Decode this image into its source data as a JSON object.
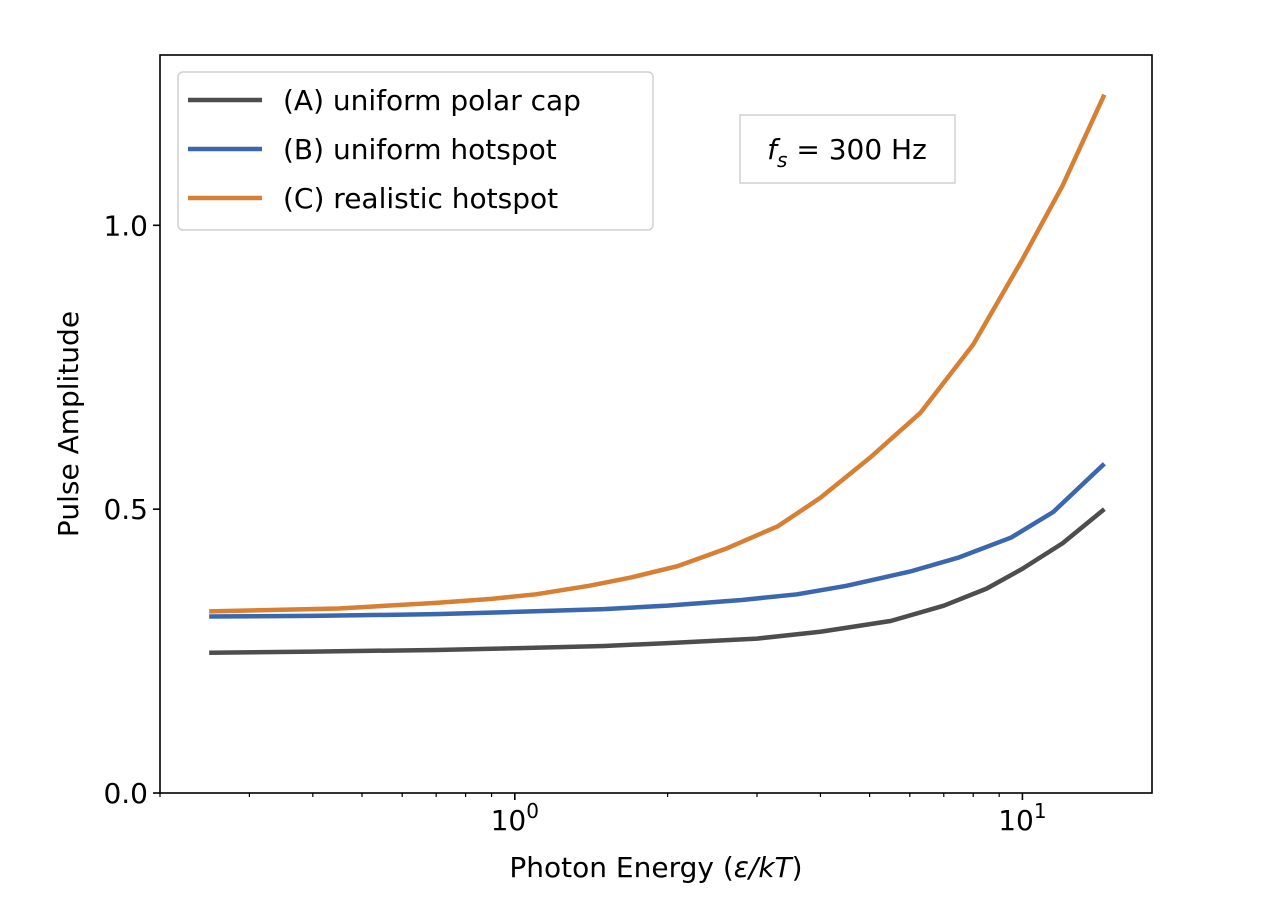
{
  "chart_data": {
    "type": "line",
    "xlabel_prefix": "Photon Energy (",
    "xlabel_var": "ε/kT",
    "xlabel_suffix": ")",
    "ylabel": "Pulse Amplitude",
    "xscale": "log",
    "xlim": [
      0.2,
      18
    ],
    "ylim": [
      0,
      1.3
    ],
    "yticks": [
      0.0,
      0.5,
      1.0
    ],
    "ytick_labels": [
      "0.0",
      "0.5",
      "1.0"
    ],
    "xticks": [
      1,
      10
    ],
    "xtick_base": "10",
    "xtick_exponents": [
      "0",
      "1"
    ],
    "grid": false,
    "legend_position": "top-left",
    "annotation": {
      "var": "f",
      "sub": "s",
      "rest": " = 300 Hz",
      "position": "top-center-right"
    },
    "series": [
      {
        "name": "(A) uniform polar cap",
        "color": "#4d4d4d",
        "x": [
          0.25,
          0.4,
          0.7,
          1.0,
          1.5,
          2.0,
          3.0,
          4.0,
          5.5,
          7.0,
          8.5,
          10.0,
          12.0,
          14.5
        ],
        "y": [
          0.247,
          0.249,
          0.252,
          0.255,
          0.259,
          0.264,
          0.272,
          0.284,
          0.303,
          0.33,
          0.36,
          0.395,
          0.44,
          0.5
        ]
      },
      {
        "name": "(B) uniform hotspot",
        "color": "#3a67ae",
        "x": [
          0.25,
          0.4,
          0.7,
          1.0,
          1.5,
          2.0,
          2.8,
          3.6,
          4.5,
          6.0,
          7.5,
          9.5,
          11.5,
          14.5
        ],
        "y": [
          0.311,
          0.312,
          0.315,
          0.319,
          0.324,
          0.33,
          0.34,
          0.35,
          0.365,
          0.39,
          0.415,
          0.45,
          0.495,
          0.58
        ]
      },
      {
        "name": "(C) realistic hotspot",
        "color": "#d77f32",
        "x": [
          0.25,
          0.45,
          0.7,
          0.9,
          1.1,
          1.4,
          1.7,
          2.1,
          2.6,
          3.3,
          4.0,
          5.0,
          6.3,
          8.0,
          10.0,
          12.0,
          14.5
        ],
        "y": [
          0.32,
          0.325,
          0.335,
          0.342,
          0.35,
          0.365,
          0.38,
          0.4,
          0.43,
          0.47,
          0.52,
          0.59,
          0.67,
          0.79,
          0.94,
          1.07,
          1.23
        ]
      }
    ]
  }
}
